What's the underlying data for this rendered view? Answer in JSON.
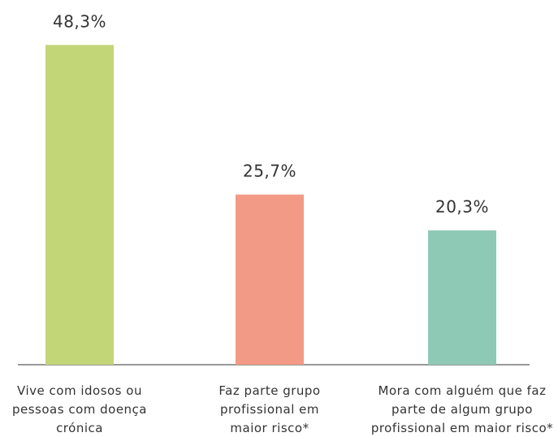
{
  "chart_data": {
    "type": "bar",
    "categories": [
      [
        "Vive com idosos ou",
        "pessoas com doença",
        "crónica"
      ],
      [
        "Faz parte grupo",
        "profissional em",
        "maior risco*"
      ],
      [
        "Mora com alguém que faz",
        "parte de algum grupo",
        "profissional em maior risco*"
      ]
    ],
    "values": [
      48.3,
      25.7,
      20.3
    ],
    "value_labels": [
      "48,3%",
      "25,7%",
      "20,3%"
    ],
    "colors": [
      "#c2d677",
      "#f29a85",
      "#8ec9b5"
    ]
  }
}
